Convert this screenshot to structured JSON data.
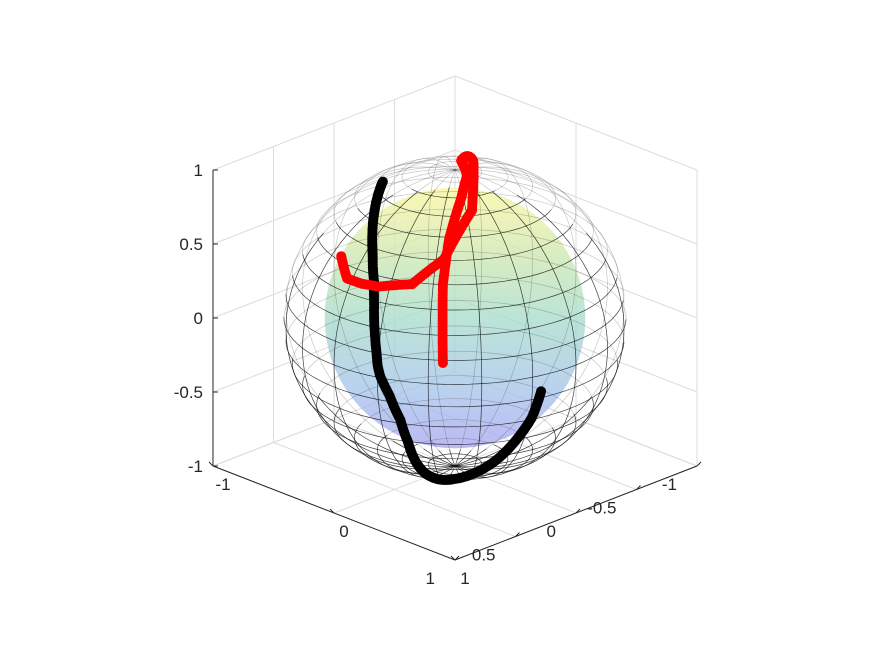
{
  "chart_data": {
    "type": "scatter",
    "title": "",
    "xlabel": "",
    "ylabel": "",
    "zlabel": "",
    "xlim": [
      -1,
      1
    ],
    "ylim": [
      -1,
      1
    ],
    "zlim": [
      -1,
      1
    ],
    "grid": true,
    "surface": {
      "shape": "unit-sphere",
      "colormap": "parula",
      "opacity": 0.35,
      "edge_color": "#000000"
    },
    "ticks": {
      "x": [
        {
          "value": -1,
          "label": "-1"
        },
        {
          "value": 0,
          "label": "0"
        },
        {
          "value": 1,
          "label": "1"
        }
      ],
      "y": [
        {
          "value": -1,
          "label": "-1"
        },
        {
          "value": -0.5,
          "label": "-0.5"
        },
        {
          "value": 0,
          "label": "0"
        },
        {
          "value": 0.5,
          "label": "0.5"
        },
        {
          "value": 1,
          "label": "1"
        }
      ],
      "z": [
        {
          "value": -1,
          "label": "-1"
        },
        {
          "value": -0.5,
          "label": "-0.5"
        },
        {
          "value": 0,
          "label": "0"
        },
        {
          "value": 0.5,
          "label": "0.5"
        },
        {
          "value": 1,
          "label": "1"
        }
      ]
    },
    "series": [
      {
        "color": "#000000",
        "points": [
          [
            0.96,
            0.25,
            -0.11
          ],
          [
            0.91,
            0.28,
            -0.3
          ],
          [
            0.83,
            0.32,
            -0.45
          ],
          [
            0.71,
            0.35,
            -0.61
          ],
          [
            0.55,
            0.37,
            -0.75
          ],
          [
            0.36,
            0.37,
            -0.86
          ],
          [
            0.18,
            0.32,
            -0.93
          ],
          [
            0.0,
            0.25,
            -0.97
          ],
          [
            -0.18,
            0.15,
            -0.97
          ],
          [
            -0.35,
            0.04,
            -0.94
          ],
          [
            -0.5,
            -0.05,
            -0.86
          ],
          [
            -0.64,
            -0.1,
            -0.76
          ],
          [
            -0.74,
            -0.12,
            -0.66
          ],
          [
            -0.78,
            -0.14,
            -0.61
          ],
          [
            -0.82,
            -0.17,
            -0.55
          ],
          [
            -0.86,
            -0.2,
            -0.47
          ],
          [
            -0.9,
            -0.23,
            -0.38
          ],
          [
            -0.93,
            -0.26,
            -0.27
          ],
          [
            -0.95,
            -0.28,
            -0.14
          ],
          [
            -0.96,
            -0.28,
            -0.05
          ],
          [
            -0.96,
            -0.28,
            0.02
          ],
          [
            -0.89,
            -0.23,
            0.4
          ],
          [
            -0.83,
            -0.2,
            0.52
          ],
          [
            -0.75,
            -0.16,
            0.64
          ]
        ]
      },
      {
        "color": "#ff0000",
        "points": [
          [
            0.65,
            0.75,
            0.14
          ],
          [
            0.52,
            0.62,
            0.59
          ],
          [
            0.4,
            0.45,
            0.8
          ],
          [
            0.25,
            0.2,
            0.95
          ],
          [
            0.1,
            0.0,
            0.99
          ],
          [
            -0.1,
            -0.15,
            0.98
          ],
          [
            -0.35,
            -0.5,
            0.79
          ],
          [
            -0.6,
            -0.74,
            0.3
          ],
          [
            -0.75,
            -0.66,
            -0.05
          ],
          [
            -0.86,
            -0.5,
            -0.2
          ],
          [
            -0.93,
            -0.3,
            -0.18
          ],
          [
            -0.97,
            -0.2,
            -0.14
          ],
          [
            -0.99,
            -0.1,
            -0.08
          ],
          [
            -0.99,
            -0.05,
            0.1
          ]
        ]
      }
    ]
  }
}
